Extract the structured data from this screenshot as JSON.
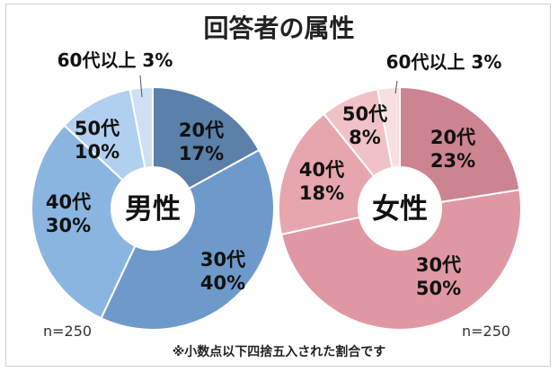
{
  "title": "回答者の属性",
  "footnote": "※小数点以下四捨五入された割合です",
  "chart_data": [
    {
      "type": "pie",
      "center_label": "男性",
      "n_label": "n=250",
      "slices": [
        {
          "age": "20代",
          "pct": "17%",
          "value": 17,
          "color": "#5b80a9"
        },
        {
          "age": "30代",
          "pct": "40%",
          "value": 40,
          "color": "#6e9acb"
        },
        {
          "age": "40代",
          "pct": "30%",
          "value": 30,
          "color": "#8ab5e0"
        },
        {
          "age": "50代",
          "pct": "10%",
          "value": 10,
          "color": "#b1cfee"
        },
        {
          "age": "60代以上",
          "pct": "3%",
          "value": 3,
          "color": "#cfe0f5"
        }
      ]
    },
    {
      "type": "pie",
      "center_label": "女性",
      "n_label": "n=250",
      "slices": [
        {
          "age": "20代",
          "pct": "23%",
          "value": 23,
          "color": "#cc8491"
        },
        {
          "age": "30代",
          "pct": "50%",
          "value": 50,
          "color": "#df98a3"
        },
        {
          "age": "40代",
          "pct": "18%",
          "value": 18,
          "color": "#e7a5ad"
        },
        {
          "age": "50代",
          "pct": "8%",
          "value": 8,
          "color": "#f0c2c8"
        },
        {
          "age": "60代以上",
          "pct": "3%",
          "value": 3,
          "color": "#f7dfe2"
        }
      ]
    }
  ]
}
